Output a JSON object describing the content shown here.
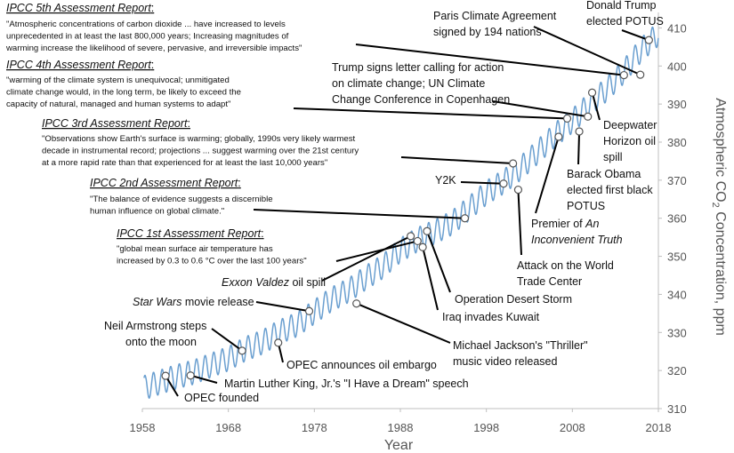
{
  "chart_data": {
    "type": "line",
    "xlabel": "Year",
    "ylabel_main": "Atmospheric CO",
    "ylabel_sub": "2",
    "ylabel_tail": " Concentration, ppm",
    "xlim": [
      1958,
      2018
    ],
    "ylim": [
      310,
      415
    ],
    "xticks": [
      1958,
      1968,
      1978,
      1988,
      1998,
      2008,
      2018
    ],
    "yticks": [
      310,
      320,
      330,
      340,
      350,
      360,
      370,
      380,
      390,
      400,
      410
    ],
    "grid": false,
    "series": [
      {
        "color": "#6a9fd0",
        "x": [
          1958,
          1960,
          1962,
          1964,
          1966,
          1968,
          1970,
          1972,
          1974,
          1976,
          1978,
          1980,
          1982,
          1984,
          1986,
          1988,
          1990,
          1992,
          1994,
          1996,
          1998,
          2000,
          2002,
          2004,
          2006,
          2008,
          2010,
          2012,
          2014,
          2016,
          2018
        ],
        "y": [
          315.3,
          316.9,
          318.4,
          319.6,
          321.4,
          323.1,
          325.7,
          327.5,
          330.2,
          332.1,
          335.4,
          338.7,
          341.1,
          344.4,
          347.4,
          351.6,
          354.4,
          356.4,
          358.8,
          362.6,
          366.7,
          369.6,
          373.2,
          377.5,
          381.9,
          385.6,
          389.9,
          393.9,
          398.6,
          404.2,
          408.5
        ],
        "seasonal_amplitude": 3.2
      }
    ]
  },
  "annotations": [
    {
      "id": "opec-founded",
      "year": 1960.7,
      "ppm": 318.6,
      "lines": [
        "OPEC founded"
      ]
    },
    {
      "id": "mlk",
      "year": 1963.6,
      "ppm": 318.7,
      "lines": [
        "Martin Luther King, Jr.'s \"I Have a Dream\" speech"
      ]
    },
    {
      "id": "armstrong",
      "year": 1969.6,
      "ppm": 325.2,
      "lines": [
        "Neil Armstrong steps",
        "onto the moon"
      ]
    },
    {
      "id": "opec-embargo",
      "year": 1973.8,
      "ppm": 327.3,
      "lines": [
        "OPEC announces oil embargo"
      ]
    },
    {
      "id": "star-wars",
      "year": 1977.4,
      "ppm": 335.6,
      "lines": [
        "Star Wars movie release"
      ],
      "italic_prefix": "Star Wars"
    },
    {
      "id": "thriller",
      "year": 1982.9,
      "ppm": 337.6,
      "lines": [
        "Michael Jackson's \"Thriller\"",
        "music video released"
      ]
    },
    {
      "id": "exxon",
      "year": 1989.2,
      "ppm": 355.3,
      "lines": [
        "Exxon Valdez oil spill"
      ],
      "italic_prefix": "Exxon Valdez"
    },
    {
      "id": "kuwait",
      "year": 1990.6,
      "ppm": 352.4,
      "lines": [
        "Iraq invades Kuwait"
      ]
    },
    {
      "id": "desert-storm",
      "year": 1991.1,
      "ppm": 356.6,
      "lines": [
        "Operation Desert Storm"
      ]
    },
    {
      "id": "y2k",
      "year": 2000.0,
      "ppm": 369.1,
      "lines": [
        "Y2K"
      ]
    },
    {
      "id": "wtc",
      "year": 2001.7,
      "ppm": 367.5,
      "lines": [
        "Attack on the World",
        "Trade Center"
      ]
    },
    {
      "id": "inconvenient",
      "year": 2006.4,
      "ppm": 381.4,
      "lines": [
        "Premier of An",
        "Inconvenient Truth"
      ],
      "italic_line1_suffix": "An"
    },
    {
      "id": "obama",
      "year": 2008.8,
      "ppm": 382.8,
      "lines": [
        "Barack Obama",
        "elected first black",
        "POTUS"
      ]
    },
    {
      "id": "deepwater",
      "year": 2010.3,
      "ppm": 393.0,
      "lines": [
        "Deepwater",
        "Horizon oil",
        "spill"
      ]
    },
    {
      "id": "trump-letter",
      "year": 2009.8,
      "ppm": 386.7,
      "lines": [
        "Trump signs letter calling for action",
        "on climate change; UN Climate",
        "Change Conference in Copenhagen"
      ]
    },
    {
      "id": "paris",
      "year": 2015.9,
      "ppm": 397.7,
      "lines": [
        "Paris Climate Agreement",
        "signed by 194 nations"
      ]
    },
    {
      "id": "trump-elected",
      "year": 2016.9,
      "ppm": 406.8,
      "lines": [
        "Donald Trump",
        "elected POTUS"
      ]
    }
  ],
  "ipcc": [
    {
      "id": "ipcc-1",
      "year": 1990.0,
      "ppm": 354.0,
      "title": "IPCC 1st Assessment Report",
      "quote": [
        "\"global mean surface air temperature has",
        "increased by 0.3 to 0.6 °C over the last 100 years\""
      ]
    },
    {
      "id": "ipcc-2",
      "year": 1995.5,
      "ppm": 360.0,
      "title": "IPCC 2nd Assessment Report",
      "quote": [
        "\"The balance of evidence suggests a discernible",
        "human influence on global climate.\""
      ]
    },
    {
      "id": "ipcc-3",
      "year": 2001.1,
      "ppm": 374.4,
      "title": "IPCC 3rd Assessment Report",
      "quote": [
        "\"Observations show Earth's surface is warming; globally, 1990s very likely warmest",
        "decade in instrumental record; projections ... suggest warming over the 21st century",
        "at a more rapid rate than that experienced for at least the last 10,000 years\""
      ]
    },
    {
      "id": "ipcc-4",
      "year": 2007.4,
      "ppm": 386.2,
      "title": "IPCC 4th Assessment Report",
      "quote": [
        "\"warming of the climate system is unequivocal; unmitigated",
        "climate change would, in the long term, be likely to exceed the",
        "capacity of natural, managed and human systems to adapt\""
      ]
    },
    {
      "id": "ipcc-5",
      "year": 2014.0,
      "ppm": 397.6,
      "title": "IPCC 5th Assessment Report",
      "quote": [
        "\"Atmospheric concentrations of carbon dioxide ... have increased to levels",
        "unprecedented in at least the last 800,000 years; Increasing magnitudes of",
        "warming increase the likelihood of severe, pervasive, and irreversible impacts\""
      ]
    }
  ]
}
